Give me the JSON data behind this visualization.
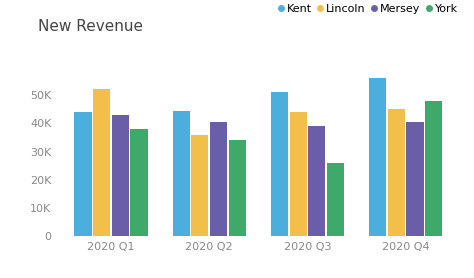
{
  "title": "New Revenue",
  "categories": [
    "2020 Q1",
    "2020 Q2",
    "2020 Q3",
    "2020 Q4"
  ],
  "series": {
    "Kent": [
      44000,
      44500,
      51000,
      56000
    ],
    "Lincoln": [
      52000,
      36000,
      44000,
      45000
    ],
    "Mersey": [
      43000,
      40500,
      39000,
      40500
    ],
    "York": [
      38000,
      34000,
      26000,
      48000
    ]
  },
  "colors": {
    "Kent": "#4BAEDD",
    "Lincoln": "#F2C04A",
    "Mersey": "#6B5EA8",
    "York": "#3DAA6A"
  },
  "yticks": [
    0,
    10000,
    20000,
    30000,
    40000,
    50000
  ],
  "ytick_labels": [
    "0",
    "10K",
    "20K",
    "30K",
    "40K",
    "50K"
  ],
  "ylim": [
    0,
    62000
  ],
  "background_color": "#ffffff",
  "title_fontsize": 11,
  "tick_fontsize": 8,
  "legend_fontsize": 8,
  "bar_width": 0.19
}
